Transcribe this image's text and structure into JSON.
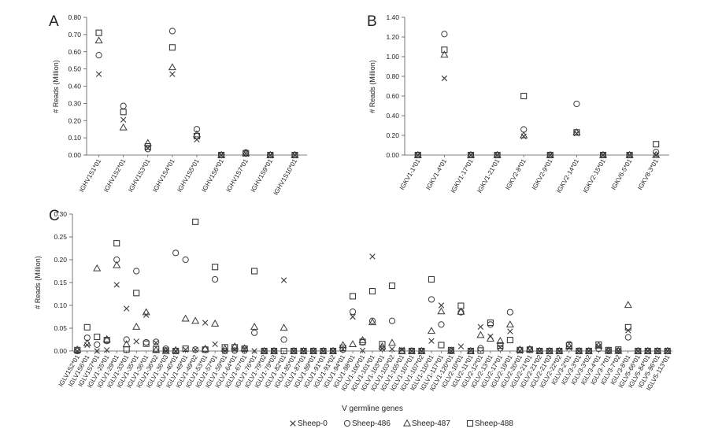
{
  "series_names": [
    "Sheep-0",
    "Sheep-486",
    "Sheep-487",
    "Sheep-488"
  ],
  "markers": [
    "x",
    "circle",
    "triangle",
    "square"
  ],
  "marker_color": "#3a3a3a",
  "chart_data": [
    {
      "panel": "A",
      "type": "scatter",
      "ylabel": "# Reads (Million)",
      "ylim": [
        0,
        0.8
      ],
      "yticks": [
        "0.00",
        "0.10",
        "0.20",
        "0.30",
        "0.40",
        "0.50",
        "0.60",
        "0.70",
        "0.80"
      ],
      "categories": [
        "IGHV1S1*01",
        "IGHV1S2*01",
        "IGHV1S3*01",
        "IGHV1S4*01",
        "IGHV1S5*01",
        "IGHV1S6*01",
        "IGHV1S7*01",
        "IGHV1S9*01",
        "IGHV1S10*01"
      ],
      "series": [
        {
          "name": "Sheep-0",
          "values": [
            0.47,
            0.205,
            0.04,
            0.47,
            0.09,
            0,
            0.01,
            0,
            0
          ]
        },
        {
          "name": "Sheep-486",
          "values": [
            0.58,
            0.285,
            0.035,
            0.72,
            0.15,
            0,
            0.015,
            0,
            0
          ]
        },
        {
          "name": "Sheep-487",
          "values": [
            0.665,
            0.16,
            0.07,
            0.51,
            0.12,
            0,
            0.01,
            0,
            0
          ]
        },
        {
          "name": "Sheep-488",
          "values": [
            0.71,
            0.25,
            0.05,
            0.625,
            0.11,
            0,
            0.01,
            0,
            0
          ]
        }
      ]
    },
    {
      "panel": "B",
      "type": "scatter",
      "ylabel": "# Reads (Million)",
      "ylim": [
        0,
        1.4
      ],
      "yticks": [
        "0.00",
        "0.20",
        "0.40",
        "0.60",
        "0.80",
        "1.00",
        "1.20",
        "1.40"
      ],
      "categories": [
        "IGKV1-1*01",
        "IGKV1-4*01",
        "IGKV1-17*01",
        "IGKV1-21*01",
        "IGKV2-8*01",
        "IGKV2-9*01",
        "IGKV2-14*01",
        "IGKV2-15*01",
        "IGKV6-5*01",
        "IGKV8-3*01"
      ],
      "series": [
        {
          "name": "Sheep-0",
          "values": [
            0,
            0.78,
            0,
            0,
            0.19,
            0,
            0.22,
            0,
            0,
            0
          ]
        },
        {
          "name": "Sheep-486",
          "values": [
            0,
            1.23,
            0,
            0,
            0.26,
            0,
            0.52,
            0,
            0,
            0.03
          ]
        },
        {
          "name": "Sheep-487",
          "values": [
            0,
            1.02,
            0,
            0,
            0.2,
            0,
            0.23,
            0,
            0,
            0
          ]
        },
        {
          "name": "Sheep-488",
          "values": [
            0,
            1.07,
            0,
            0,
            0.6,
            0,
            0.23,
            0,
            0,
            0.11
          ]
        }
      ]
    },
    {
      "panel": "C",
      "type": "scatter",
      "ylabel": "# Reads (Million)",
      "xlabel": "V germline genes",
      "ylim": [
        0,
        0.3
      ],
      "yticks": [
        "0.00",
        "0.05",
        "0.10",
        "0.15",
        "0.20",
        "0.25",
        "0.30"
      ],
      "categories": [
        "IGLV1S2*01",
        "IGLV1S6*01",
        "IGLV1S7*01",
        "IGLV1-25*01",
        "IGLV1-29*01",
        "IGLV1-33*01",
        "IGLV1-35*01",
        "IGLV1-36*01",
        "IGLV1-36*02",
        "IGLV1-36*03",
        "IGLV1-40*01",
        "IGLV1-49*01",
        "IGLV1-49*02",
        "IGLV1-53*01",
        "IGLV1-57*01",
        "IGLV1-59*01",
        "IGLV1-64*01",
        "IGLV1-67*01",
        "IGLV1-76*01",
        "IGLV1-79*02",
        "IGLV1-79*03",
        "IGLV1-82*01",
        "IGLV1-85*01",
        "IGLV1-87*01",
        "IGLV1-89*01",
        "IGLV1-91*01",
        "IGLV1-91*02",
        "IGLV1-94*01",
        "IGLV1-98*01",
        "IGLV1-100*01",
        "IGLV1-101*01",
        "IGLV1-103*01",
        "IGLV1-103*02",
        "IGLV1-105*01",
        "IGLV1-107*01",
        "IGLV1-107*02",
        "IGLV1-110*01",
        "IGLV1-117*01",
        "IGLV1-120*01",
        "IGLV2-10*01",
        "IGLV2-11*01",
        "IGLV2-12*01",
        "IGLV2-13*01",
        "IGLV2-17*01",
        "IGLV2-19*01",
        "IGLV2-20*01",
        "IGLV2-21*01",
        "IGLV2-21*02",
        "IGLV2-21*03",
        "IGLV2-22*02",
        "IGLV3-2*01",
        "IGLV3-3*01",
        "IGLV3-3*02",
        "IGLV3-4*01",
        "IGLV3-7*01",
        "IGLV3-7*02",
        "IGLV3-8*01",
        "IGLV5-66*01",
        "IGLV5-84*01",
        "IGLV5-96*01",
        "IGLV5-113*01"
      ],
      "series": [
        {
          "name": "Sheep-0",
          "values": [
            0,
            0.013,
            0,
            0.002,
            0.145,
            0.093,
            0.021,
            0.079,
            0.018,
            0,
            0,
            0.003,
            0.003,
            0.062,
            0.015,
            0,
            0.003,
            0.004,
            0,
            0,
            0,
            0.155,
            0,
            0,
            0,
            0,
            0,
            0.004,
            0.075,
            0.001,
            0.207,
            0.005,
            0.004,
            0.003,
            0,
            0,
            0.022,
            0.1,
            0,
            0.01,
            0.001,
            0.053,
            0.032,
            0.008,
            0.043,
            0,
            0.002,
            0,
            0,
            0,
            0.007,
            0,
            0,
            0.01,
            0,
            0,
            0.045,
            0,
            0,
            0,
            0
          ]
        },
        {
          "name": "Sheep-486",
          "values": [
            0,
            0.029,
            0.014,
            0.022,
            0.2,
            0.025,
            0.175,
            0.019,
            0.02,
            0.005,
            0.215,
            0.2,
            0.003,
            0.003,
            0.157,
            0,
            0.001,
            0.001,
            0.04,
            0,
            0,
            0.025,
            0,
            0,
            0,
            0,
            0,
            0.003,
            0.086,
            0.019,
            0.066,
            0.006,
            0.066,
            0,
            0,
            0,
            0.113,
            0.058,
            0,
            0.085,
            0,
            0.006,
            0.058,
            0.006,
            0.085,
            0.002,
            0.003,
            0,
            0,
            0,
            0.015,
            0,
            0,
            0.005,
            0,
            0,
            0.03,
            0,
            0,
            0,
            0
          ]
        },
        {
          "name": "Sheep-487",
          "values": [
            0.003,
            0.017,
            0.181,
            0.026,
            0.188,
            0.015,
            0.053,
            0.085,
            0.002,
            0,
            0.002,
            0.071,
            0.066,
            0.005,
            0.06,
            0.005,
            0.01,
            0.006,
            0.053,
            0,
            0,
            0.051,
            0,
            0,
            0,
            0,
            0,
            0.013,
            0.015,
            0.024,
            0.063,
            0.01,
            0.018,
            0,
            0,
            0,
            0.044,
            0.087,
            0,
            0.086,
            0,
            0.035,
            0.027,
            0.022,
            0.058,
            0.003,
            0.004,
            0,
            0,
            0,
            0.01,
            0,
            0,
            0.012,
            0,
            0,
            0.101,
            0,
            0,
            0,
            0
          ]
        },
        {
          "name": "Sheep-488",
          "values": [
            0.002,
            0.052,
            0.031,
            0.024,
            0.236,
            0.003,
            0.127,
            0.016,
            0.004,
            0.001,
            0,
            0.005,
            0.283,
            0.003,
            0.184,
            0.008,
            0.008,
            0.005,
            0.175,
            0,
            0,
            0,
            0,
            0,
            0,
            0,
            0,
            0.007,
            0.12,
            0.02,
            0.131,
            0.015,
            0.143,
            0,
            0,
            0,
            0.157,
            0.013,
            0.002,
            0.099,
            0,
            0.001,
            0.062,
            0.012,
            0.024,
            0.002,
            0.003,
            0,
            0,
            0,
            0.012,
            0,
            0,
            0.014,
            0.002,
            0.003,
            0.052,
            0,
            0,
            0,
            0
          ]
        }
      ]
    }
  ]
}
